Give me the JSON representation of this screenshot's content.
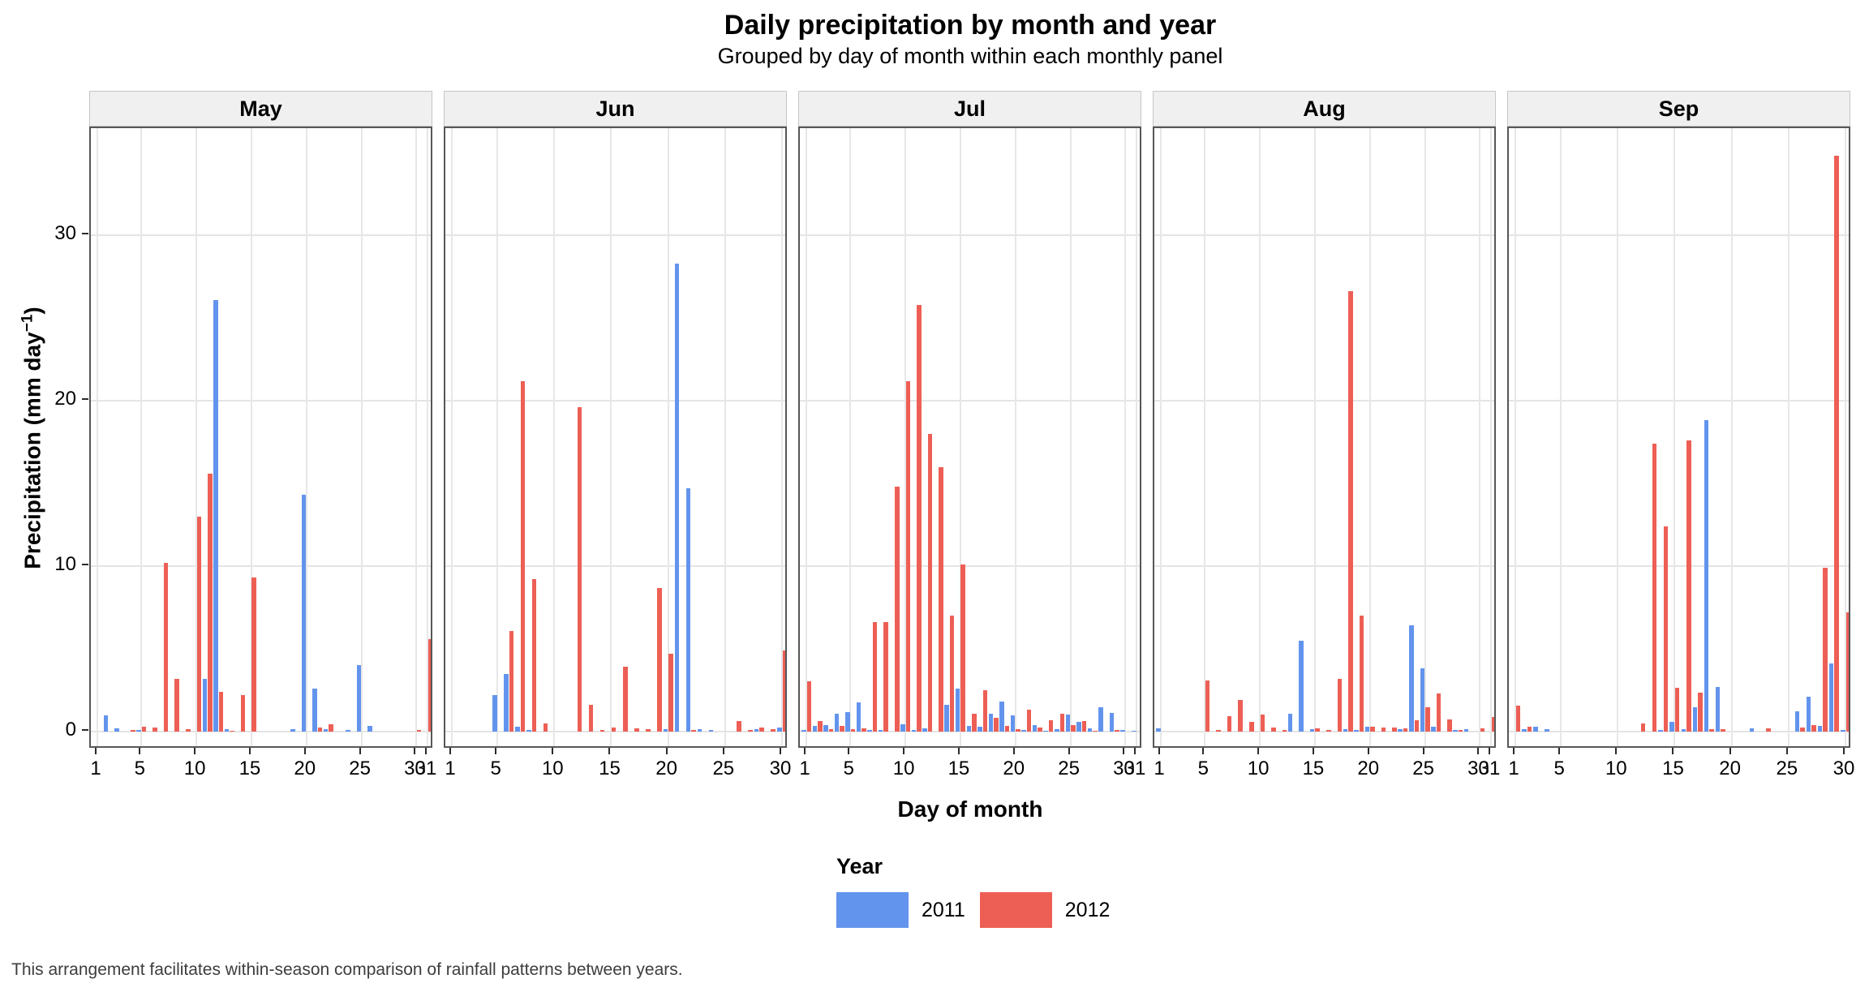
{
  "title": "Daily precipitation by month and year",
  "subtitle": "Grouped by day of month within each monthly panel",
  "caption": "This arrangement facilitates within-season comparison of rainfall patterns between years.",
  "y_axis": {
    "label_prefix": "Precipitation (mm day",
    "label_sup": "−1",
    "label_suffix": ")",
    "ticks": [
      0,
      10,
      20,
      30
    ]
  },
  "x_axis": {
    "title": "Day of month"
  },
  "legend": {
    "title": "Year",
    "entries": [
      {
        "label": "2011",
        "color": "#6394ED"
      },
      {
        "label": "2012",
        "color": "#ED5F55"
      }
    ]
  },
  "colors": {
    "year_2011": "#6394ED",
    "year_2012": "#ED5F55",
    "strip_bg": "#F0F0F0",
    "panel_border": "#575757",
    "gridline": "#E4E4E4"
  },
  "chart_data": {
    "type": "bar",
    "title": "Daily precipitation by month and year",
    "subtitle": "Grouped by day of month within each monthly panel",
    "xlabel": "Day of month",
    "ylabel": "Precipitation (mm day⁻¹)",
    "ylim": [
      0,
      37
    ],
    "y_ticks": [
      0,
      10,
      20,
      30
    ],
    "grid": "major",
    "legend_position": "bottom",
    "facet": "month",
    "panels": [
      {
        "month": "May",
        "days": 31,
        "x_breaks": [
          1,
          5,
          10,
          15,
          20,
          25,
          30,
          31
        ],
        "series": [
          {
            "name": "2011",
            "values": [
              0,
              1.0,
              0.2,
              0,
              0.1,
              0,
              0,
              0,
              0,
              0,
              3.2,
              26.1,
              0.15,
              0,
              0,
              0,
              0,
              0,
              0.15,
              14.3,
              2.6,
              0.15,
              0,
              0.1,
              4.0,
              0.35,
              0,
              0,
              0,
              0,
              0
            ]
          },
          {
            "name": "2012",
            "values": [
              0,
              0,
              0,
              0.1,
              0.3,
              0.25,
              10.2,
              3.2,
              0.15,
              13.0,
              15.6,
              2.4,
              0.05,
              2.2,
              9.3,
              0,
              0,
              0,
              0,
              0,
              0.25,
              0.45,
              0,
              0,
              0,
              0,
              0,
              0,
              0,
              0.1,
              5.6
            ]
          }
        ]
      },
      {
        "month": "Jun",
        "days": 30,
        "x_breaks": [
          1,
          5,
          10,
          15,
          20,
          25,
          30
        ],
        "series": [
          {
            "name": "2011",
            "values": [
              0,
              0,
              0,
              0,
              2.2,
              3.5,
              0.3,
              0.1,
              0,
              0,
              0,
              0,
              0,
              0,
              0,
              0,
              0,
              0,
              0,
              0.15,
              28.3,
              14.7,
              0.15,
              0.1,
              0,
              0,
              0,
              0.15,
              0,
              0.25
            ]
          },
          {
            "name": "2012",
            "values": [
              0,
              0,
              0,
              0,
              0,
              6.1,
              21.2,
              9.2,
              0.5,
              0,
              0,
              19.6,
              1.6,
              0.1,
              0.25,
              3.9,
              0.2,
              0.15,
              8.7,
              4.7,
              0,
              0.1,
              0,
              0,
              0,
              0.65,
              0.1,
              0.25,
              0.15,
              4.9
            ]
          }
        ]
      },
      {
        "month": "Jul",
        "days": 31,
        "x_breaks": [
          1,
          5,
          10,
          15,
          20,
          25,
          30,
          31
        ],
        "series": [
          {
            "name": "2011",
            "values": [
              0.1,
              0.35,
              0.4,
              1.1,
              1.2,
              1.75,
              0.1,
              0.1,
              0,
              0.45,
              0.1,
              0.2,
              0,
              1.6,
              2.6,
              0.35,
              0.3,
              1.1,
              1.8,
              1.0,
              0.1,
              0.4,
              0.05,
              0.15,
              1.05,
              0.6,
              0.2,
              1.45,
              1.15,
              0.1,
              0.05
            ]
          },
          {
            "name": "2012",
            "values": [
              3.05,
              0.65,
              0.15,
              0.35,
              0.15,
              0.2,
              6.6,
              6.6,
              14.8,
              21.2,
              25.8,
              18.0,
              16.0,
              7.0,
              10.1,
              1.1,
              2.5,
              0.85,
              0.35,
              0.15,
              1.3,
              0.25,
              0.7,
              1.1,
              0.4,
              0.65,
              0.05,
              0,
              0.1,
              0,
              0
            ]
          }
        ]
      },
      {
        "month": "Aug",
        "days": 31,
        "x_breaks": [
          1,
          5,
          10,
          15,
          20,
          25,
          30,
          31
        ],
        "series": [
          {
            "name": "2011",
            "values": [
              0.2,
              0,
              0,
              0,
              0,
              0,
              0,
              0,
              0,
              0,
              0,
              0,
              1.1,
              5.5,
              0.15,
              0,
              0,
              0.15,
              0.1,
              0.3,
              0,
              0,
              0.15,
              6.4,
              3.8,
              0.3,
              0,
              0.1,
              0.15,
              0,
              0
            ]
          },
          {
            "name": "2012",
            "values": [
              0,
              0,
              0,
              0,
              3.1,
              0.1,
              0.95,
              1.9,
              0.6,
              1.05,
              0.25,
              0.1,
              0,
              0,
              0.2,
              0.1,
              3.2,
              26.6,
              7.0,
              0.3,
              0.25,
              0.25,
              0.2,
              0.7,
              1.45,
              2.3,
              0.75,
              0.1,
              0,
              0.2,
              0.9
            ]
          }
        ]
      },
      {
        "month": "Sep",
        "days": 30,
        "x_breaks": [
          1,
          5,
          10,
          15,
          20,
          25,
          30
        ],
        "series": [
          {
            "name": "2011",
            "values": [
              0,
              0.15,
              0.3,
              0.15,
              0,
              0,
              0,
              0,
              0,
              0,
              0,
              0,
              0,
              0.1,
              0.6,
              0.15,
              1.45,
              18.8,
              2.7,
              0,
              0,
              0.2,
              0,
              0,
              0,
              1.25,
              2.1,
              0.35,
              4.1,
              0.1
            ]
          },
          {
            "name": "2012",
            "values": [
              1.55,
              0.3,
              0,
              0,
              0,
              0,
              0,
              0,
              0,
              0,
              0,
              0.5,
              17.4,
              12.4,
              2.65,
              17.6,
              2.35,
              0.15,
              0.15,
              0,
              0,
              0,
              0.2,
              0,
              0,
              0.25,
              0.4,
              9.9,
              34.8,
              7.2
            ]
          }
        ]
      }
    ]
  }
}
